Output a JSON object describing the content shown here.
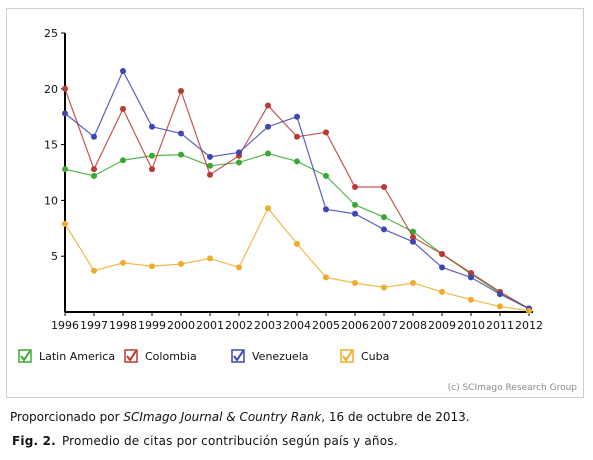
{
  "chart_data": {
    "type": "line",
    "x": [
      "1996",
      "1997",
      "1998",
      "1999",
      "2000",
      "2001",
      "2002",
      "2003",
      "2004",
      "2005",
      "2006",
      "2007",
      "2008",
      "2009",
      "2010",
      "2011",
      "2012"
    ],
    "ylim": [
      0,
      25
    ],
    "yticks": [
      5,
      10,
      15,
      20,
      25
    ],
    "grid": false,
    "legend_position": "bottom",
    "series": [
      {
        "name": "Latin America",
        "color": "#3aa832",
        "values": [
          12.8,
          12.2,
          13.6,
          14.0,
          14.1,
          13.1,
          13.4,
          14.2,
          13.5,
          12.2,
          9.6,
          8.5,
          7.2,
          5.2,
          3.4,
          1.7,
          0.3
        ]
      },
      {
        "name": "Colombia",
        "color": "#b83a32",
        "values": [
          20.0,
          12.8,
          18.2,
          12.8,
          19.8,
          12.3,
          14.0,
          18.5,
          15.7,
          16.1,
          11.2,
          11.2,
          6.7,
          5.2,
          3.5,
          1.8,
          0.3
        ]
      },
      {
        "name": "Venezuela",
        "color": "#3c46b4",
        "values": [
          17.8,
          15.7,
          21.6,
          16.6,
          16.0,
          13.9,
          14.3,
          16.6,
          17.5,
          9.2,
          8.8,
          7.4,
          6.3,
          4.0,
          3.1,
          1.6,
          0.3
        ]
      },
      {
        "name": "Cuba",
        "color": "#f0ab2a",
        "values": [
          7.9,
          3.7,
          4.4,
          4.1,
          4.3,
          4.8,
          4.0,
          9.3,
          6.1,
          3.1,
          2.6,
          2.2,
          2.6,
          1.8,
          1.1,
          0.5,
          0.1
        ]
      }
    ]
  },
  "credit": "(c) SCImago Research Group",
  "source": {
    "prefix": "Proporcionado por ",
    "italic": "SCImago Journal & Country Rank",
    "suffix": ", 16 de octubre de 2013."
  },
  "caption": {
    "label": "Fig. 2.",
    "text": "Promedio de citas por contribución según país y años."
  }
}
